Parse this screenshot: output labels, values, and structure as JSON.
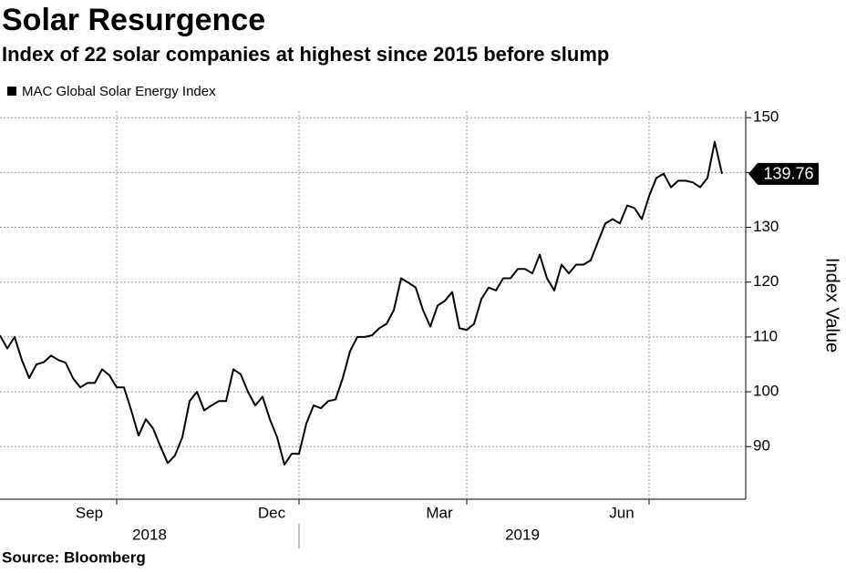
{
  "chart_data": {
    "type": "line",
    "title": "Solar Resurgence",
    "subtitle": "Index of 22 solar companies at highest since 2015 before slump",
    "source": "Source: Bloomberg",
    "y_axis_label": "Index Value",
    "categories": [
      null,
      null,
      null,
      null,
      null,
      null,
      null,
      null,
      null,
      null,
      null,
      null,
      null,
      null,
      null,
      null,
      "Sep",
      null,
      null,
      null,
      null,
      null,
      null,
      null,
      null,
      null,
      null,
      null,
      null,
      null,
      null,
      null,
      null,
      null,
      null,
      null,
      null,
      null,
      null,
      null,
      null,
      "Dec",
      null,
      null,
      null,
      null,
      null,
      null,
      null,
      null,
      null,
      null,
      null,
      null,
      null,
      null,
      null,
      null,
      null,
      null,
      null,
      null,
      null,
      null,
      "Mar",
      null,
      null,
      null,
      null,
      null,
      null,
      null,
      null,
      null,
      null,
      null,
      null,
      null,
      null,
      null,
      null,
      null,
      null,
      null,
      null,
      null,
      null,
      null,
      null,
      "Jun",
      null,
      null,
      null,
      null,
      null,
      null,
      null,
      null,
      null,
      null
    ],
    "year_labels": [
      "2018",
      "2019"
    ],
    "series": [
      {
        "name": "MAC Global Solar Energy Index",
        "color": "#000000",
        "values": [
          110.3,
          107.9,
          110,
          105.8,
          102.5,
          105,
          105.4,
          106.6,
          105.8,
          105.3,
          102.5,
          100.8,
          101.6,
          101.6,
          104.1,
          103,
          100.8,
          100.8,
          96.6,
          92,
          95,
          93.3,
          90,
          87,
          88.4,
          91.7,
          98.3,
          100,
          96.6,
          97.5,
          98.3,
          98.3,
          104.1,
          103.2,
          100,
          97.5,
          99.1,
          95,
          91.7,
          86.7,
          88.7,
          88.7,
          94.2,
          97.5,
          97,
          98.3,
          98.6,
          102.5,
          107.4,
          110,
          110,
          110.3,
          111.6,
          112.4,
          114.9,
          120.7,
          119.9,
          119,
          114.9,
          111.9,
          115.7,
          116.6,
          118.2,
          111.6,
          111.3,
          112.4,
          116.9,
          119,
          118.5,
          120.7,
          120.7,
          122.4,
          122.4,
          121.6,
          125,
          120.7,
          118.5,
          123.2,
          121.6,
          123.2,
          123.2,
          124,
          127.4,
          130.7,
          131.5,
          130.7,
          134,
          133.5,
          131.5,
          135.7,
          139,
          139.8,
          137.3,
          138.5,
          138.5,
          138.2,
          137.3,
          139,
          145.6,
          139.76
        ]
      }
    ],
    "ylim": [
      80.4,
      151.2
    ],
    "yticks": [
      90,
      100,
      110,
      120,
      130,
      140,
      150
    ],
    "grid": true
  }
}
